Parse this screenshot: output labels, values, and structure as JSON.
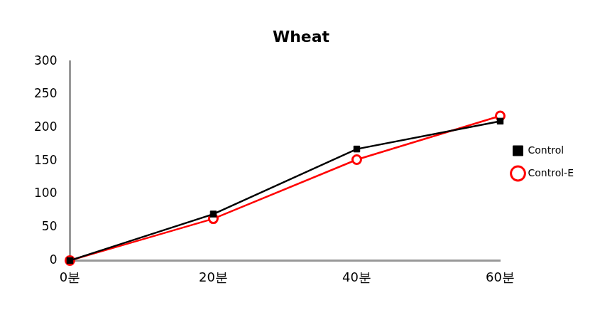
{
  "chart_data": {
    "type": "line",
    "title": "Wheat",
    "categories": [
      "0분",
      "20분",
      "40분",
      "60분"
    ],
    "series": [
      {
        "name": "Control",
        "color": "#000000",
        "marker": "square",
        "values": [
          0,
          70,
          168,
          210
        ]
      },
      {
        "name": "Control-E",
        "color": "#ff0000",
        "marker": "open_circle",
        "values": [
          0,
          63,
          152,
          218
        ]
      }
    ],
    "ylim": [
      0,
      300
    ],
    "yticks": [
      0,
      50,
      100,
      150,
      200,
      250,
      300
    ],
    "grid": false,
    "legend": "right"
  }
}
